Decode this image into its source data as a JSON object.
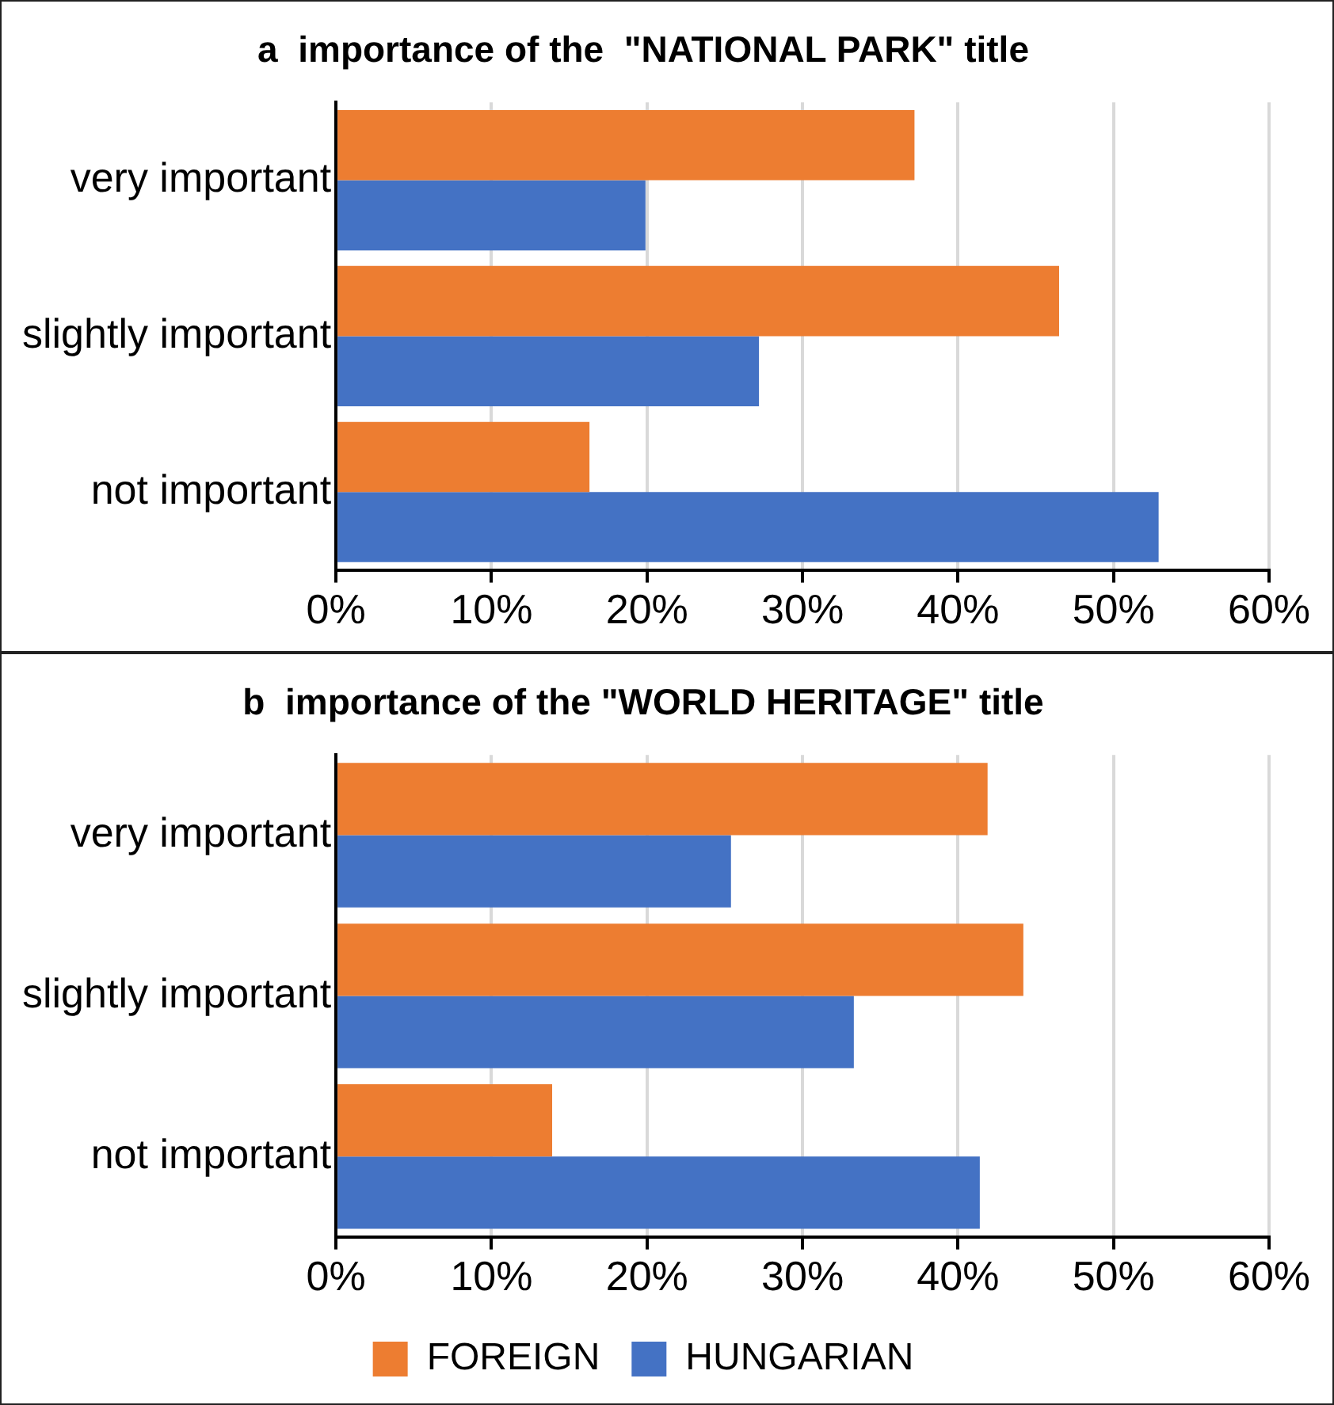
{
  "chart_data": [
    {
      "type": "bar",
      "orientation": "horizontal",
      "title": "a  importance of the  \"NATIONAL PARK\" title",
      "categories": [
        "very important",
        "slightly important",
        "not important"
      ],
      "series": [
        {
          "color": "#ed7d31",
          "values": [
            37.2,
            46.5,
            16.3
          ]
        },
        {
          "color": "#4472c4",
          "values": [
            19.9,
            27.2,
            52.9
          ]
        }
      ],
      "xlim": [
        0,
        60
      ],
      "xticks": [
        {
          "value": 0,
          "label": "0%"
        },
        {
          "value": 10,
          "label": "10%"
        },
        {
          "value": 20,
          "label": "20%"
        },
        {
          "value": 30,
          "label": "30%"
        },
        {
          "value": 40,
          "label": "40%"
        },
        {
          "value": 50,
          "label": "50%"
        },
        {
          "value": 60,
          "label": "60%"
        }
      ],
      "grid": "x",
      "legend": false
    },
    {
      "type": "bar",
      "orientation": "horizontal",
      "title": "b  importance of the \"WORLD HERITAGE\" title",
      "categories": [
        "very important",
        "slightly important",
        "not important"
      ],
      "series": [
        {
          "name": "FOREIGN",
          "color": "#ed7d31",
          "values": [
            41.9,
            44.2,
            13.9
          ]
        },
        {
          "name": "HUNGARIAN",
          "color": "#4472c4",
          "values": [
            25.4,
            33.3,
            41.4
          ]
        }
      ],
      "xlim": [
        0,
        60
      ],
      "xticks": [
        {
          "value": 0,
          "label": "0%"
        },
        {
          "value": 10,
          "label": "10%"
        },
        {
          "value": 20,
          "label": "20%"
        },
        {
          "value": 30,
          "label": "30%"
        },
        {
          "value": 40,
          "label": "40%"
        },
        {
          "value": 50,
          "label": "50%"
        },
        {
          "value": 60,
          "label": "60%"
        }
      ],
      "grid": "x",
      "legend": "bottom"
    }
  ]
}
